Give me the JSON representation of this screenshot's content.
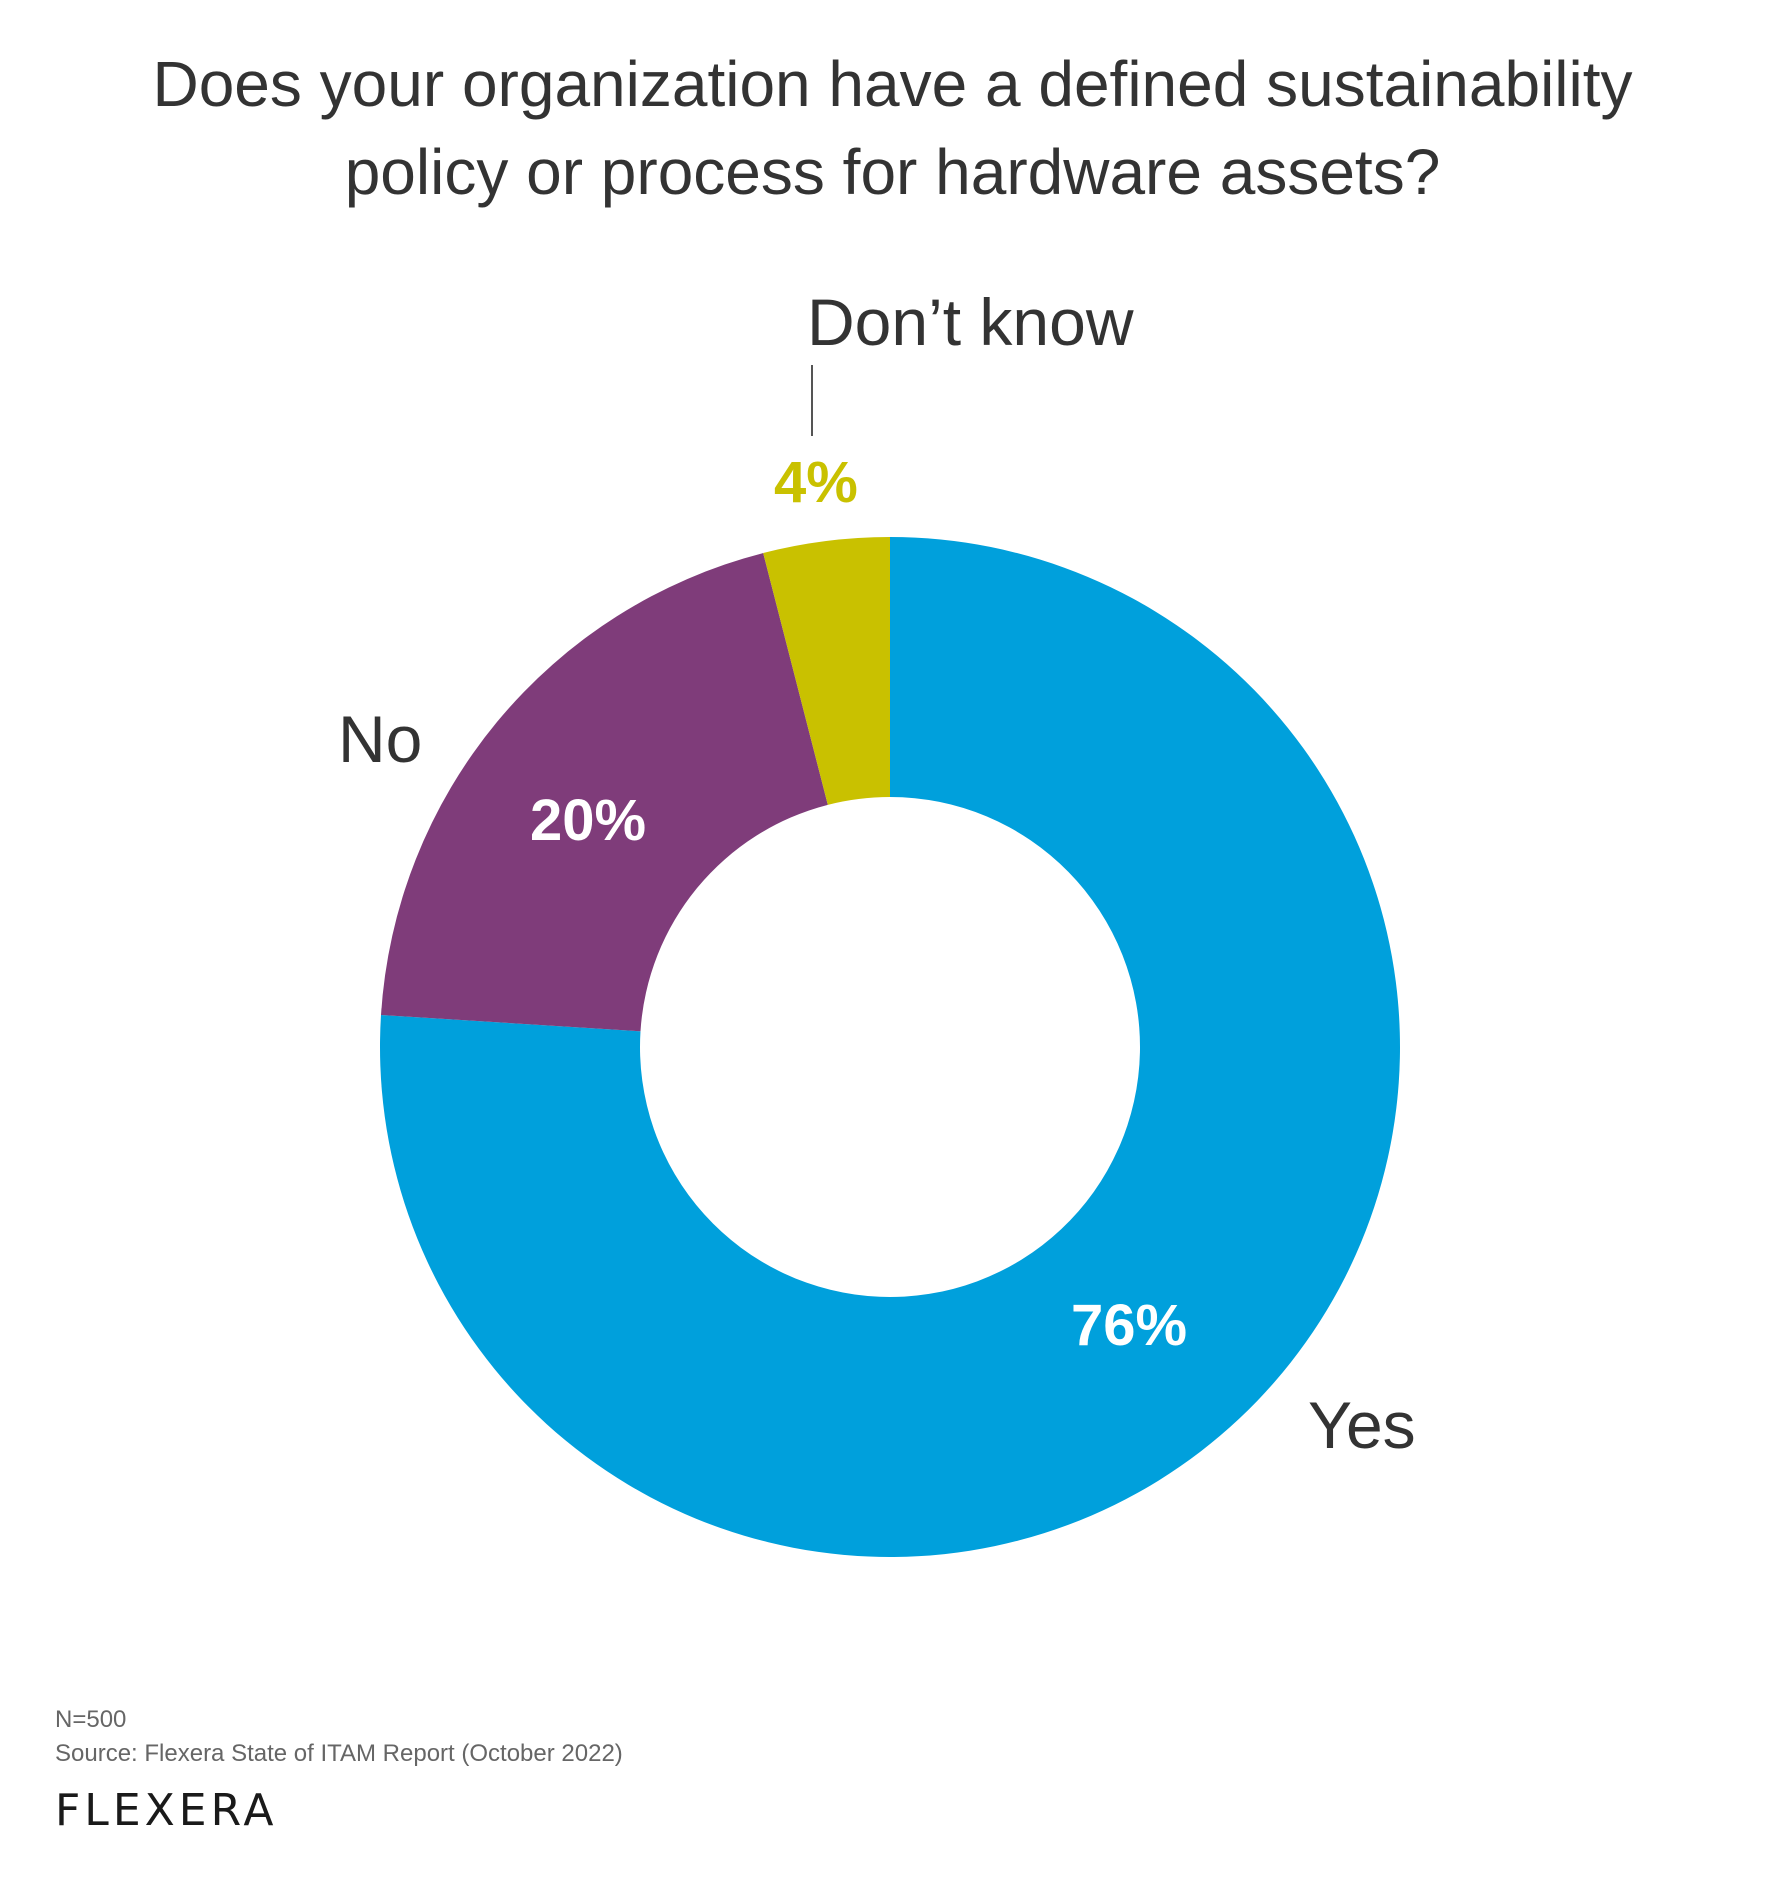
{
  "title_lines": [
    "Does your organization have a defined sustainability",
    "policy or process for hardware assets?"
  ],
  "chart_data": {
    "type": "pie",
    "variant": "donut",
    "title": "Does your organization have a defined sustainability policy or process for hardware assets?",
    "categories": [
      "Yes",
      "No",
      "Don’t know"
    ],
    "values": [
      76,
      20,
      4
    ],
    "value_labels": [
      "76%",
      "20%",
      "4%"
    ],
    "colors": [
      "#00A0DC",
      "#7F3C7A",
      "#C9C100"
    ],
    "start": "top, clockwise",
    "legend": "none (direct labels)"
  },
  "footer": {
    "n": "N=500",
    "source": "Source: Flexera State of ITAM Report (October 2022)"
  },
  "logo": "Flexera"
}
